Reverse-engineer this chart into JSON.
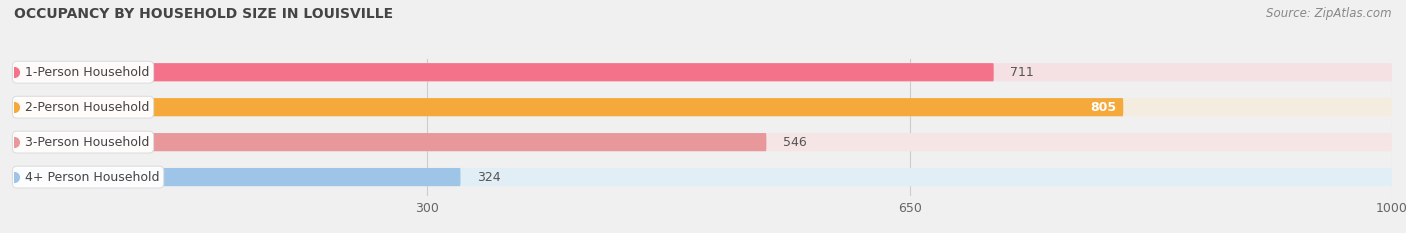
{
  "title": "OCCUPANCY BY HOUSEHOLD SIZE IN LOUISVILLE",
  "source": "Source: ZipAtlas.com",
  "categories": [
    "1-Person Household",
    "2-Person Household",
    "3-Person Household",
    "4+ Person Household"
  ],
  "values": [
    711,
    805,
    546,
    324
  ],
  "bar_colors": [
    "#f4738a",
    "#f5a93a",
    "#e8979a",
    "#9ec4e8"
  ],
  "bar_bg_colors": [
    "#f5e0e4",
    "#f5ece0",
    "#f5e5e5",
    "#e2eef5"
  ],
  "dot_colors": [
    "#f4738a",
    "#f5a93a",
    "#e8979a",
    "#9ec4e8"
  ],
  "value_in_bar": [
    false,
    true,
    false,
    false
  ],
  "xlim": [
    0,
    1000
  ],
  "xticks": [
    300,
    650,
    1000
  ],
  "title_fontsize": 10,
  "source_fontsize": 8.5,
  "label_fontsize": 9,
  "value_fontsize": 9,
  "tick_fontsize": 9,
  "figsize": [
    14.06,
    2.33
  ],
  "dpi": 100,
  "bg_color": "#f0f0f0",
  "bar_area_bg": "#f8f8f8"
}
